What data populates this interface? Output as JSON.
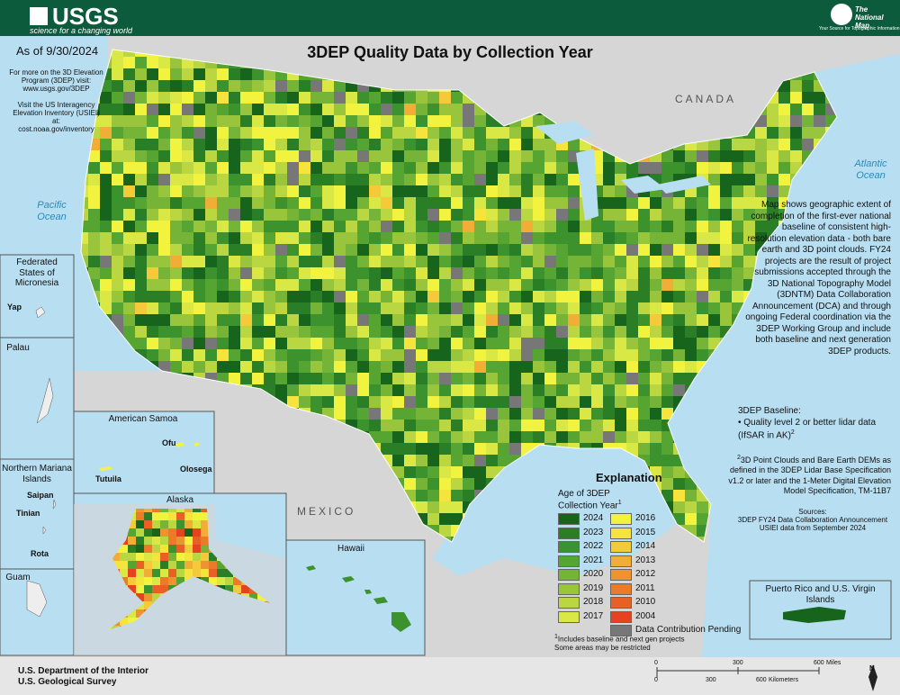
{
  "header": {
    "logo": "USGS",
    "tagline": "science for a changing world",
    "partner_logo": "The National Map",
    "partner_tagline": "Your Source for Topographic Information"
  },
  "title": "3DEP Quality Data by Collection Year",
  "as_of": "As of 9/30/2024",
  "info": [
    "For more on the 3D Elevation Program (3DEP) visit:",
    "www.usgs.gov/3DEP",
    "Visit the US Interagency Elevation Inventory (USIEI) at:",
    "cost.noaa.gov/inventory"
  ],
  "places": {
    "canada": "CANADA",
    "pacific": "Pacific Ocean",
    "atlantic": "Atlantic Ocean",
    "mexico": "MEXICO"
  },
  "insets": {
    "micronesia": "Federated States of Micronesia",
    "yap": "Yap",
    "palau": "Palau",
    "samoa": "American Samoa",
    "ofu": "Ofu",
    "olosega": "Olosega",
    "tutuila": "Tutuila",
    "mariana": "Northern Mariana Islands",
    "saipan": "Saipan",
    "tinian": "Tinian",
    "rota": "Rota",
    "guam": "Guam",
    "alaska": "Alaska",
    "hawaii": "Hawaii",
    "puerto_rico": "Puerto Rico and U.S. Virgin Islands"
  },
  "description": "Map shows geographic extent of completion of the first-ever national baseline of consistent high-resolution elevation data - both bare earth and 3D point clouds. FY24 projects are the result of project submissions accepted through the 3D National Topography Model (3DNTM) Data Collaboration Announcement (DCA) and through ongoing Federal coordination via the 3DEP Working Group and include both baseline and next generation 3DEP products.",
  "baseline": {
    "title": "3DEP Baseline:",
    "item": "Quality level 2 or better lidar data (IfSAR in AK)",
    "note_mark": "2"
  },
  "footnote2": {
    "mark": "2",
    "text": "3D Point Clouds and Bare Earth DEMs as defined in the 3DEP Lidar Base Specification v1.2 or later and the 1-Meter Digital Elevation Model Specification, TM-11B7"
  },
  "sources": {
    "title": "Sources:",
    "lines": [
      "3DEP FY24 Data Collaboration Announcement",
      "USIEI data from September 2024"
    ]
  },
  "legend": {
    "title": "Explanation",
    "subtitle": "Age of 3DEP Collection Year",
    "note_mark": "1",
    "items": [
      {
        "label": "2024",
        "color": "#17641d"
      },
      {
        "label": "2023",
        "color": "#2a7f26"
      },
      {
        "label": "2022",
        "color": "#3c922c"
      },
      {
        "label": "2021",
        "color": "#56a431"
      },
      {
        "label": "2020",
        "color": "#76b437"
      },
      {
        "label": "2019",
        "color": "#99c53c"
      },
      {
        "label": "2018",
        "color": "#bad641"
      },
      {
        "label": "2017",
        "color": "#d9e844"
      },
      {
        "label": "2016",
        "color": "#f1f33f"
      },
      {
        "label": "2015",
        "color": "#f6e33c"
      },
      {
        "label": "2014",
        "color": "#f4c93a"
      },
      {
        "label": "2013",
        "color": "#f1ad36"
      },
      {
        "label": "2012",
        "color": "#ee9330"
      },
      {
        "label": "2011",
        "color": "#eb7a29"
      },
      {
        "label": "2010",
        "color": "#e86124"
      },
      {
        "label": "2004",
        "color": "#e6421f"
      },
      {
        "label": "Data Contribution Pending",
        "color": "#777777"
      }
    ],
    "footnotes": [
      {
        "mark": "1",
        "text": "Includes baseline and next gen projects"
      },
      {
        "text": "Some areas may be restricted"
      }
    ]
  },
  "footer": {
    "line1": "U.S. Department of the Interior",
    "line2": "U.S. Geological Survey"
  },
  "scale": {
    "miles": [
      "0",
      "300",
      "600"
    ],
    "miles_unit": "Miles",
    "km": [
      "0",
      "300",
      "600"
    ],
    "km_unit": "Kilometers"
  },
  "north": "N"
}
